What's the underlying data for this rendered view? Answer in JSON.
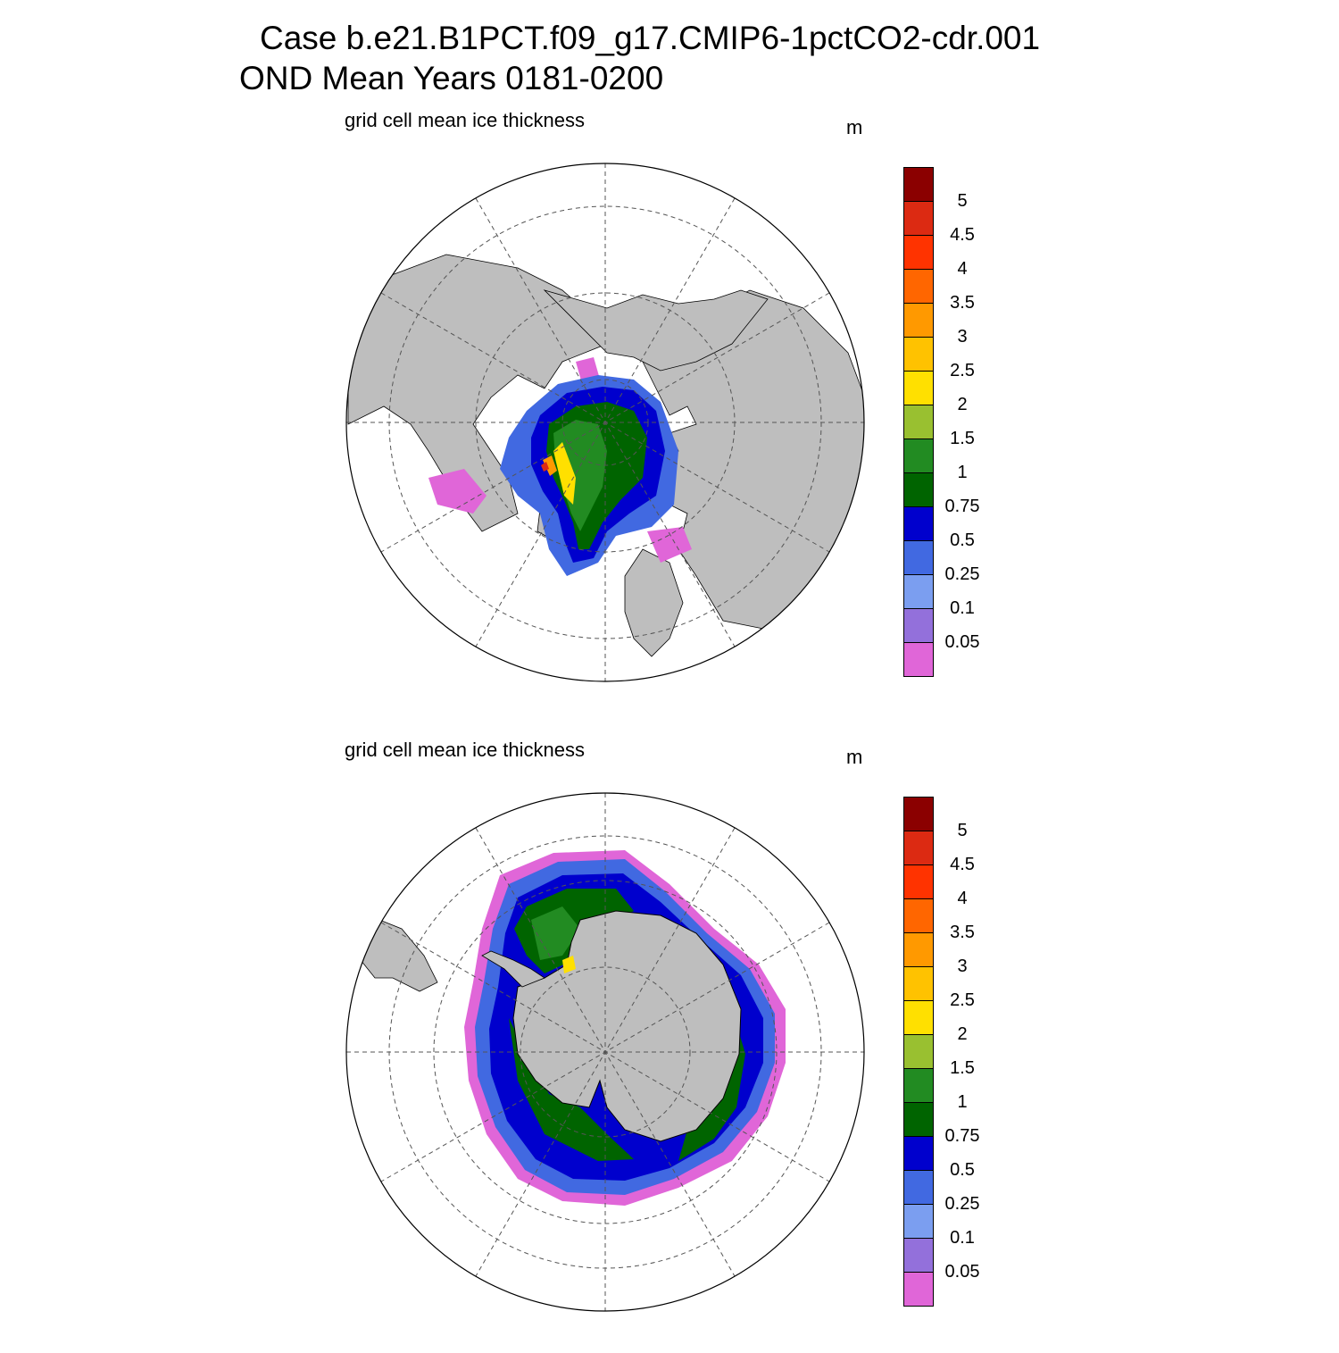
{
  "title": {
    "line1": "Case b.e21.B1PCT.f09_g17.CMIP6-1pctCO2-cdr.001",
    "line2": "OND Mean   Years 0181-0200"
  },
  "panels": [
    {
      "label": "grid cell mean ice thickness",
      "units": "m",
      "hemisphere": "north"
    },
    {
      "label": "grid cell mean ice thickness",
      "units": "m",
      "hemisphere": "south"
    }
  ],
  "colorbar": {
    "labels": [
      "5",
      "4.5",
      "4",
      "3.5",
      "3",
      "2.5",
      "2",
      "1.5",
      "1",
      "0.75",
      "0.5",
      "0.25",
      "0.1",
      "0.05"
    ],
    "colors": [
      "#8b0000",
      "#dc2a12",
      "#ff3300",
      "#ff6600",
      "#ff9900",
      "#ffc200",
      "#ffe000",
      "#99c030",
      "#228b22",
      "#006400",
      "#0000cd",
      "#4169e1",
      "#7b9ef0",
      "#9370db",
      "#e066d8"
    ]
  },
  "map_colors": {
    "land": "#bebebe",
    "ocean": "#ffffff",
    "grid": "#555555"
  }
}
